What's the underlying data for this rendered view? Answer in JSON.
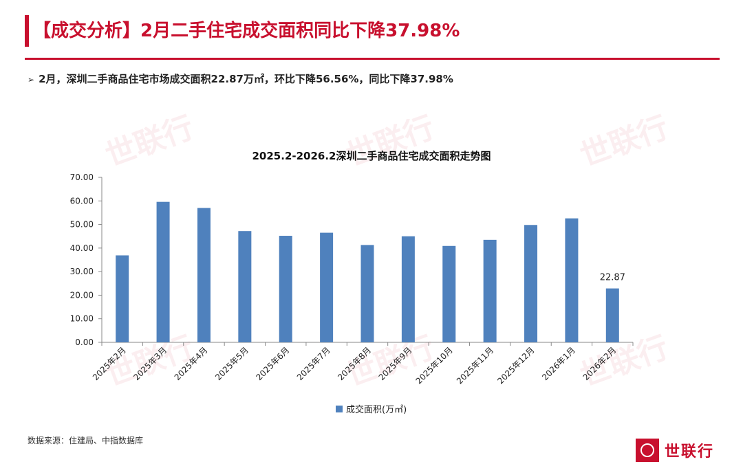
{
  "header": {
    "title": "【成交分析】2月二手住宅成交面积同比下降37.98%",
    "bullet": "2月，深圳二手商品住宅市场成交面积22.87万㎡，环比下降56.56%，同比下降37.98%"
  },
  "chart_data": {
    "type": "bar",
    "title": "2025.2-2026.2深圳二手商品住宅成交面积走势图",
    "categories": [
      "2025年2月",
      "2025年3月",
      "2025年4月",
      "2025年5月",
      "2025年6月",
      "2025年7月",
      "2025年8月",
      "2025年9月",
      "2025年10月",
      "2025年11月",
      "2025年12月",
      "2026年1月",
      "2026年2月"
    ],
    "series": [
      {
        "name": "成交面积(万㎡)",
        "values": [
          36.9,
          59.6,
          57.0,
          47.2,
          45.2,
          46.5,
          41.3,
          45.0,
          40.9,
          43.5,
          49.8,
          52.6,
          22.87
        ]
      }
    ],
    "ylim": [
      0,
      70
    ],
    "ytick_step": 10,
    "ytick_labels": [
      "0.00",
      "10.00",
      "20.00",
      "30.00",
      "40.00",
      "50.00",
      "60.00",
      "70.00"
    ],
    "data_labels": [
      {
        "index": 12,
        "text": "22.87"
      }
    ],
    "legend_position": "bottom",
    "bar_color": "#4f81bd",
    "grid": false
  },
  "footer": {
    "source": "数据来源：住建局、中指数据库",
    "logo_text": "世联行"
  },
  "watermark_text": "世联行"
}
